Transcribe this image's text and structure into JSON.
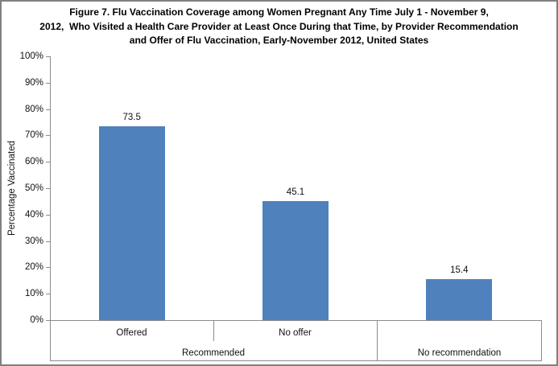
{
  "chart_data": {
    "type": "bar",
    "title_lines": [
      "Figure 7. Flu Vaccination Coverage among Women Pregnant Any Time July 1 - November 9,",
      "2012,  Who Visited a Health Care Provider at Least Once During that Time, by Provider Recommendation",
      "and Offer of Flu Vaccination, Early-November 2012, United States"
    ],
    "ylabel": "Percentage Vaccinated",
    "xlabel": "",
    "ylim": [
      0,
      100
    ],
    "ytick_step": 10,
    "ytick_labels": [
      "0%",
      "10%",
      "20%",
      "30%",
      "40%",
      "50%",
      "60%",
      "70%",
      "80%",
      "90%",
      "100%"
    ],
    "grid": false,
    "legend": "none",
    "bar_color": "#4F81BD",
    "categories": [
      {
        "label": "Offered",
        "group": "Recommended",
        "value": 73.5,
        "data_label": "73.5"
      },
      {
        "label": "No offer",
        "group": "Recommended",
        "value": 45.1,
        "data_label": "45.1"
      },
      {
        "label": "",
        "group": "No recommendation",
        "value": 15.4,
        "data_label": "15.4"
      }
    ],
    "group_labels": [
      "Recommended",
      "No recommendation"
    ],
    "group_spans": [
      [
        0,
        2
      ],
      [
        2,
        3
      ]
    ]
  }
}
